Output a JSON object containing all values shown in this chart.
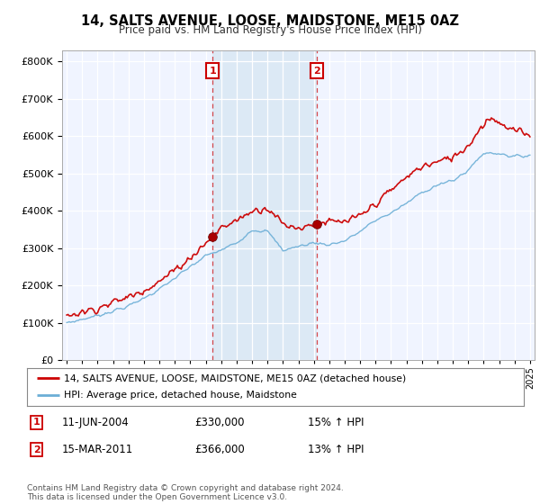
{
  "title": "14, SALTS AVENUE, LOOSE, MAIDSTONE, ME15 0AZ",
  "subtitle": "Price paid vs. HM Land Registry's House Price Index (HPI)",
  "legend_line1": "14, SALTS AVENUE, LOOSE, MAIDSTONE, ME15 0AZ (detached house)",
  "legend_line2": "HPI: Average price, detached house, Maidstone",
  "footnote": "Contains HM Land Registry data © Crown copyright and database right 2024.\nThis data is licensed under the Open Government Licence v3.0.",
  "transaction1_label": "1",
  "transaction1_date": "11-JUN-2004",
  "transaction1_price": "£330,000",
  "transaction1_hpi": "15% ↑ HPI",
  "transaction2_label": "2",
  "transaction2_date": "15-MAR-2011",
  "transaction2_price": "£366,000",
  "transaction2_hpi": "13% ↑ HPI",
  "hpi_color": "#6baed6",
  "price_color": "#cc0000",
  "transaction1_x": 2004.44,
  "transaction1_y": 330000,
  "transaction2_x": 2011.21,
  "transaction2_y": 366000,
  "ylim": [
    0,
    830000
  ],
  "xlim_start": 1995,
  "xlim_end": 2025,
  "background_color": "#ffffff",
  "plot_bg_color": "#f0f4ff",
  "grid_color": "#ffffff",
  "shade_color": "#dce9f5",
  "hpi_knots": [
    [
      1995,
      100000
    ],
    [
      1997,
      120000
    ],
    [
      1999,
      145000
    ],
    [
      2001,
      190000
    ],
    [
      2003,
      250000
    ],
    [
      2004,
      280000
    ],
    [
      2005,
      295000
    ],
    [
      2006,
      315000
    ],
    [
      2007,
      350000
    ],
    [
      2008,
      345000
    ],
    [
      2009,
      295000
    ],
    [
      2010,
      305000
    ],
    [
      2011,
      315000
    ],
    [
      2012,
      310000
    ],
    [
      2013,
      320000
    ],
    [
      2014,
      345000
    ],
    [
      2015,
      375000
    ],
    [
      2016,
      395000
    ],
    [
      2017,
      420000
    ],
    [
      2018,
      450000
    ],
    [
      2019,
      470000
    ],
    [
      2020,
      480000
    ],
    [
      2021,
      510000
    ],
    [
      2022,
      555000
    ],
    [
      2023,
      555000
    ],
    [
      2024,
      545000
    ],
    [
      2025,
      550000
    ]
  ],
  "prop_knots": [
    [
      1995,
      120000
    ],
    [
      1997,
      140000
    ],
    [
      1999,
      170000
    ],
    [
      2001,
      210000
    ],
    [
      2003,
      275000
    ],
    [
      2004.44,
      330000
    ],
    [
      2005,
      355000
    ],
    [
      2006,
      375000
    ],
    [
      2007,
      400000
    ],
    [
      2008,
      410000
    ],
    [
      2009,
      365000
    ],
    [
      2010,
      355000
    ],
    [
      2011.21,
      366000
    ],
    [
      2012,
      370000
    ],
    [
      2013,
      370000
    ],
    [
      2014,
      385000
    ],
    [
      2015,
      420000
    ],
    [
      2016,
      455000
    ],
    [
      2017,
      490000
    ],
    [
      2018,
      520000
    ],
    [
      2019,
      530000
    ],
    [
      2020,
      545000
    ],
    [
      2021,
      575000
    ],
    [
      2022,
      635000
    ],
    [
      2022.5,
      650000
    ],
    [
      2023,
      640000
    ],
    [
      2023.5,
      620000
    ],
    [
      2024,
      615000
    ],
    [
      2025,
      605000
    ]
  ]
}
